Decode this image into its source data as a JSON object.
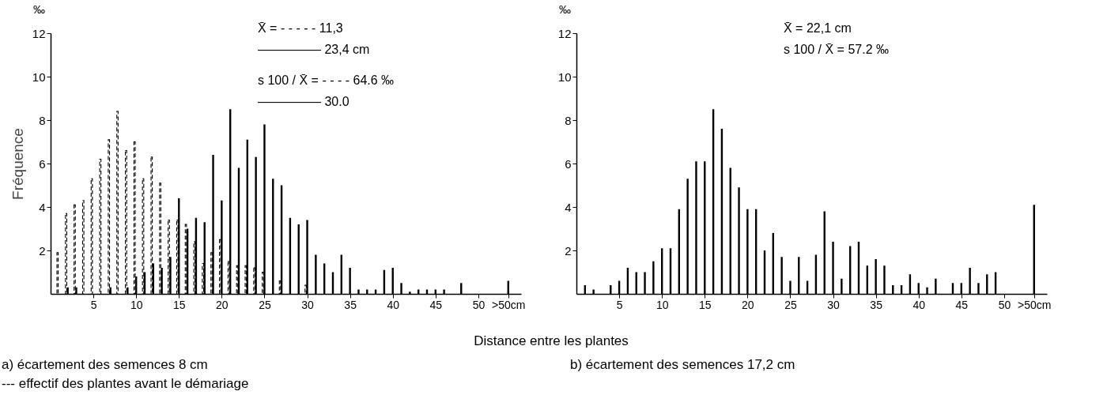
{
  "chart_data": [
    {
      "type": "bar",
      "title": "a) écartement des semences 8 cm",
      "subtitle": "--- effectif des plantes avant le démariage",
      "xlabel": "Distance entre les plantes",
      "ylabel": "Fréquence",
      "annotations": [
        "‰",
        "X̄ = - - - - -  11,3",
        "—————  23,4 cm",
        "s 100 / X̄ = - - - -  64.6 ‰",
        "—————  30.0"
      ],
      "xlim": [
        0,
        55
      ],
      "xticks": [
        5,
        10,
        15,
        20,
        25,
        30,
        35,
        40,
        45,
        50,
        {
          "value": 53.5,
          "label": ">50cm"
        }
      ],
      "ylim": [
        0,
        12
      ],
      "yticks": [
        2,
        4,
        6,
        8,
        10,
        12
      ],
      "grid": false,
      "series": [
        {
          "color": "#000000",
          "line_style": "dashed",
          "x": [
            1,
            2,
            3,
            4,
            5,
            6,
            7,
            8,
            9,
            10,
            11,
            12,
            13,
            14,
            15,
            16,
            17,
            18,
            19,
            20,
            21,
            22,
            23,
            24,
            25,
            26,
            27,
            28,
            29,
            30
          ],
          "values": [
            1.9,
            3.7,
            4.1,
            4.3,
            5.3,
            6.2,
            7.1,
            8.4,
            6.6,
            7.0,
            5.3,
            6.3,
            5.1,
            3.4,
            3.4,
            3.2,
            2.4,
            1.4,
            1.9,
            2.5,
            1.5,
            1.3,
            1.3,
            1.2,
            1.0,
            null,
            0.6,
            null,
            null,
            0.4
          ]
        },
        {
          "color": "#000000",
          "line_style": "solid",
          "x": [
            2,
            3,
            4,
            5,
            6,
            7,
            8,
            9,
            10,
            11,
            12,
            13,
            14,
            15,
            16,
            17,
            18,
            19,
            20,
            21,
            22,
            23,
            24,
            25,
            26,
            27,
            28,
            29,
            30,
            31,
            32,
            33,
            34,
            35,
            36,
            37,
            38,
            39,
            40,
            41,
            42,
            43,
            44,
            45,
            46,
            47,
            48,
            49,
            50,
            53.5
          ],
          "values": [
            0.3,
            0.3,
            null,
            null,
            null,
            0.3,
            null,
            0.3,
            0.8,
            1.0,
            1.4,
            1.2,
            1.7,
            4.4,
            3.0,
            3.5,
            3.3,
            6.4,
            4.3,
            8.5,
            5.8,
            7.1,
            6.3,
            7.8,
            5.3,
            5.0,
            3.5,
            3.2,
            3.4,
            1.8,
            1.4,
            1.0,
            1.8,
            1.2,
            0.2,
            0.2,
            0.2,
            1.1,
            1.2,
            0.5,
            0.1,
            0.2,
            0.2,
            0.2,
            0.2,
            null,
            0.5,
            null,
            null,
            0.6
          ]
        }
      ]
    },
    {
      "type": "bar",
      "title": "b) écartement des semences 17,2 cm",
      "annotations": [
        "‰",
        "X̄ = 22,1 cm",
        "s 100 / X̄ = 57.2 ‰"
      ],
      "xlim": [
        0,
        55
      ],
      "xticks": [
        5,
        10,
        15,
        20,
        25,
        30,
        35,
        40,
        45,
        50,
        {
          "value": 53.5,
          "label": ">50cm"
        }
      ],
      "ylim": [
        0,
        12
      ],
      "yticks": [
        2,
        4,
        6,
        8,
        10,
        12
      ],
      "grid": false,
      "series": [
        {
          "color": "#000000",
          "line_style": "solid",
          "x": [
            1,
            2,
            3,
            4,
            5,
            6,
            7,
            8,
            9,
            10,
            11,
            12,
            13,
            14,
            15,
            16,
            17,
            18,
            19,
            20,
            21,
            22,
            23,
            24,
            25,
            26,
            27,
            28,
            29,
            30,
            31,
            32,
            33,
            34,
            35,
            36,
            37,
            38,
            39,
            40,
            41,
            42,
            43,
            44,
            45,
            46,
            47,
            48,
            49,
            50,
            53.5
          ],
          "values": [
            0.4,
            0.2,
            null,
            0.4,
            0.6,
            1.2,
            1.0,
            1.0,
            1.5,
            2.1,
            2.1,
            3.9,
            5.3,
            6.1,
            6.1,
            8.5,
            7.6,
            5.8,
            4.9,
            3.9,
            3.9,
            2.0,
            2.8,
            1.7,
            0.6,
            1.7,
            0.6,
            1.8,
            3.8,
            2.4,
            0.7,
            2.2,
            2.4,
            1.3,
            1.6,
            1.3,
            0.4,
            0.4,
            0.9,
            0.5,
            0.3,
            0.7,
            null,
            0.5,
            0.5,
            1.2,
            0.5,
            0.9,
            1.0,
            null,
            4.1
          ]
        }
      ]
    }
  ]
}
